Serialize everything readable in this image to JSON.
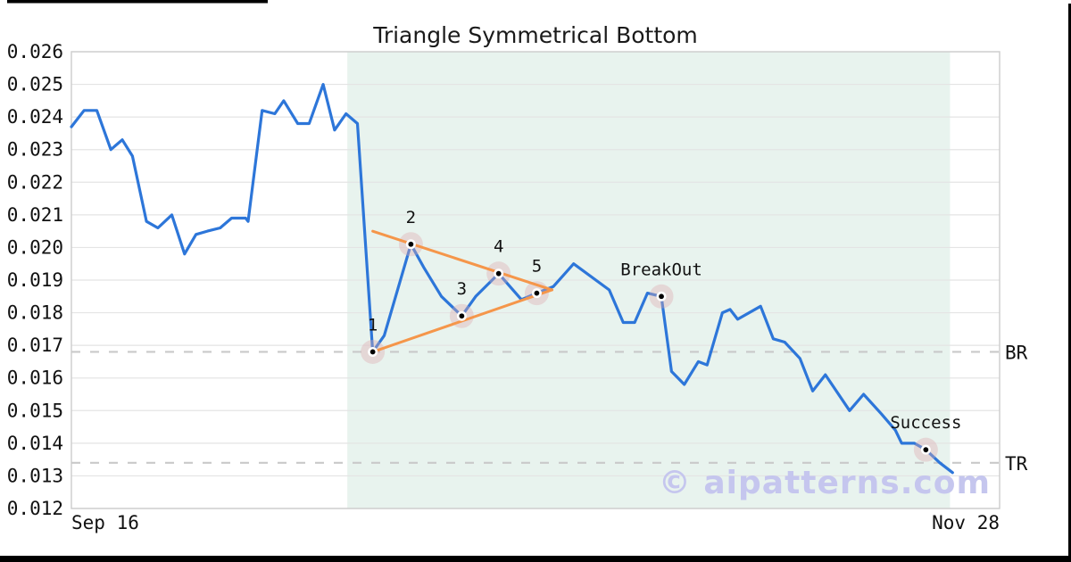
{
  "title": "Triangle Symmetrical Bottom",
  "watermark": "© aipatterns.com",
  "colors": {
    "price_line": "#2d76d9",
    "trendline": "#f5964a",
    "marker_dot": "#000000",
    "marker_halo": "rgba(222,170,175,0.38)",
    "pattern_region_fill": "#e8f3ee",
    "gridline": "#e4e4e4",
    "plot_border": "#cfcfcf",
    "level_dash": "#c9c9c9",
    "watermark_color": "#c5c6ee",
    "frame_bar": "#000000"
  },
  "chart_data": {
    "type": "line",
    "title": "Triangle Symmetrical Bottom",
    "grid": "horizontal-only",
    "x_axis": {
      "start_label": "Sep 16",
      "end_label": "Nov 28",
      "total_days": 73
    },
    "y_axis": {
      "min": 0.012,
      "max": 0.026,
      "step": 0.001,
      "tick_labels": [
        "0.026",
        "0.025",
        "0.024",
        "0.023",
        "0.022",
        "0.021",
        "0.020",
        "0.019",
        "0.018",
        "0.017",
        "0.016",
        "0.015",
        "0.014",
        "0.013",
        "0.012"
      ]
    },
    "pattern_region": {
      "start_day": 21.7,
      "end_day": 69.1
    },
    "price_series": {
      "name": "price",
      "points": [
        [
          0,
          0.0237
        ],
        [
          1,
          0.0242
        ],
        [
          2,
          0.0242
        ],
        [
          3.1,
          0.023
        ],
        [
          4,
          0.0233
        ],
        [
          4.8,
          0.0228
        ],
        [
          5.9,
          0.0208
        ],
        [
          6.8,
          0.0206
        ],
        [
          7.9,
          0.021
        ],
        [
          8.9,
          0.0198
        ],
        [
          9.8,
          0.0204
        ],
        [
          10.7,
          0.0205
        ],
        [
          11.7,
          0.0206
        ],
        [
          12.6,
          0.0209
        ],
        [
          13.7,
          0.0209
        ],
        [
          13.9,
          0.0208
        ],
        [
          15,
          0.0242
        ],
        [
          16,
          0.0241
        ],
        [
          16.7,
          0.0245
        ],
        [
          17.8,
          0.0238
        ],
        [
          18.7,
          0.0238
        ],
        [
          19.8,
          0.025
        ],
        [
          20.7,
          0.0236
        ],
        [
          21.6,
          0.0241
        ],
        [
          22.5,
          0.0238
        ],
        [
          23.7,
          0.0168
        ],
        [
          24.6,
          0.0173
        ],
        [
          26.7,
          0.0201
        ],
        [
          27.7,
          0.0194
        ],
        [
          29.1,
          0.0185
        ],
        [
          30.7,
          0.0179
        ],
        [
          31.8,
          0.0185
        ],
        [
          33.6,
          0.0192
        ],
        [
          35.4,
          0.0184
        ],
        [
          36.6,
          0.0186
        ],
        [
          37.9,
          0.0188
        ],
        [
          39.5,
          0.0195
        ],
        [
          42.3,
          0.0187
        ],
        [
          43.4,
          0.0177
        ],
        [
          44.3,
          0.0177
        ],
        [
          45.3,
          0.0186
        ],
        [
          46.4,
          0.0185
        ],
        [
          47.2,
          0.0162
        ],
        [
          48.2,
          0.0158
        ],
        [
          49.3,
          0.0165
        ],
        [
          50,
          0.0164
        ],
        [
          51.2,
          0.018
        ],
        [
          51.8,
          0.0181
        ],
        [
          52.4,
          0.0178
        ],
        [
          54.2,
          0.0182
        ],
        [
          55.2,
          0.0172
        ],
        [
          56.1,
          0.0171
        ],
        [
          57.3,
          0.0166
        ],
        [
          58.3,
          0.0156
        ],
        [
          59.3,
          0.0161
        ],
        [
          61.2,
          0.015
        ],
        [
          62.3,
          0.0155
        ],
        [
          63.7,
          0.0149
        ],
        [
          64.8,
          0.0144
        ],
        [
          65.3,
          0.014
        ],
        [
          66.3,
          0.014
        ],
        [
          67.2,
          0.0138
        ],
        [
          68.3,
          0.0134
        ],
        [
          69.3,
          0.0131
        ]
      ]
    },
    "trendlines": [
      {
        "name": "upper",
        "d1": 23.7,
        "v1": 0.0205,
        "d2": 37.8,
        "v2": 0.0187
      },
      {
        "name": "lower",
        "d1": 23.7,
        "v1": 0.0168,
        "d2": 37.8,
        "v2": 0.0187
      }
    ],
    "markers": [
      {
        "label": "1",
        "day": 23.7,
        "value": 0.0168
      },
      {
        "label": "2",
        "day": 26.7,
        "value": 0.0201
      },
      {
        "label": "3",
        "day": 30.7,
        "value": 0.0179
      },
      {
        "label": "4",
        "day": 33.6,
        "value": 0.0192
      },
      {
        "label": "5",
        "day": 36.6,
        "value": 0.0186
      },
      {
        "label": "BreakOut",
        "day": 46.4,
        "value": 0.0185
      },
      {
        "label": "Success",
        "day": 67.2,
        "value": 0.0138
      }
    ],
    "levels": [
      {
        "label": "BR",
        "value": 0.0168
      },
      {
        "label": "TR",
        "value": 0.0134
      }
    ]
  }
}
